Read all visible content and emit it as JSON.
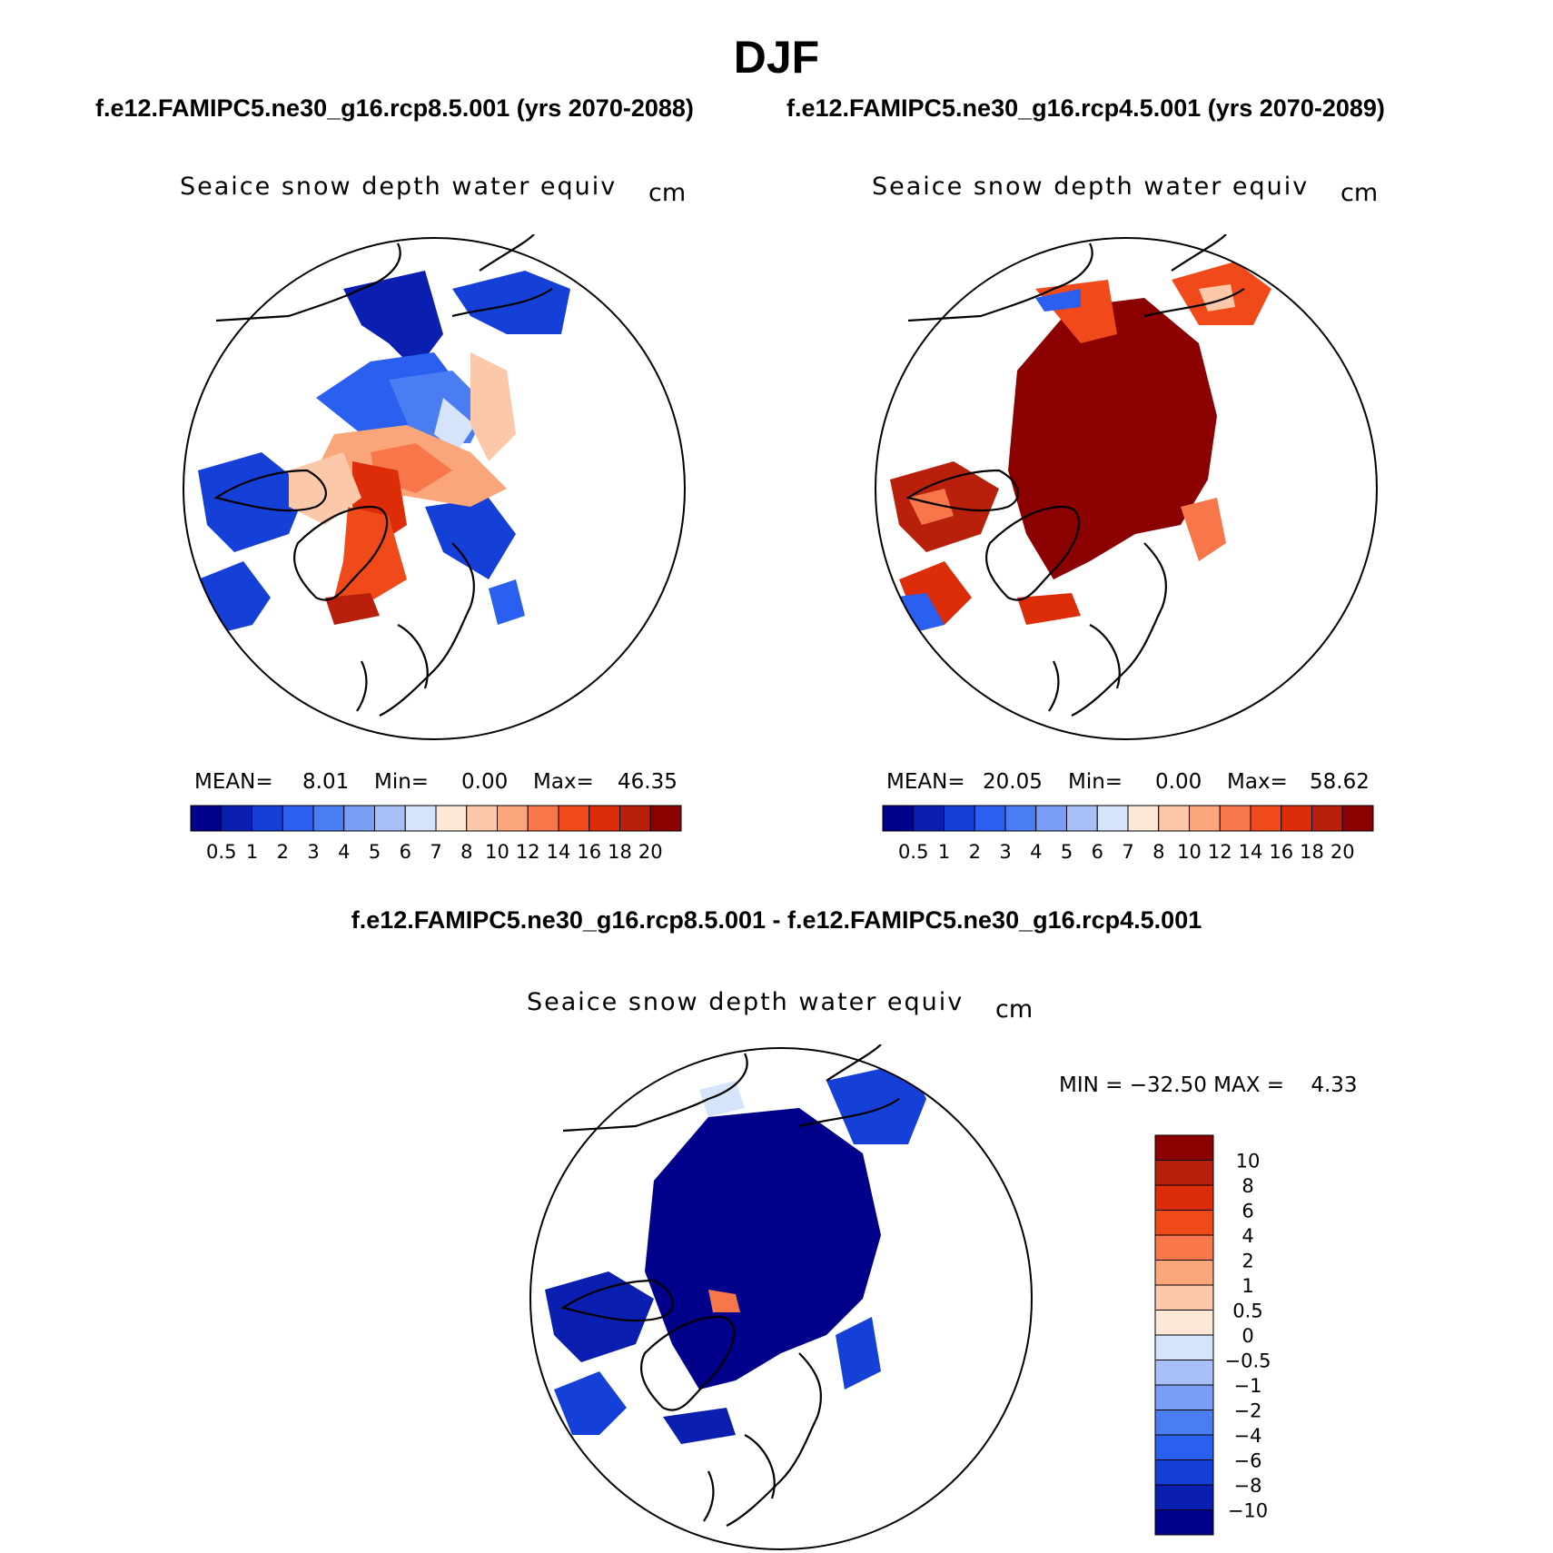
{
  "figure": {
    "title": "DJF",
    "subtitle_left": "f.e12.FAMIPC5.ne30_g16.rcp8.5.001 (yrs 2070-2088)",
    "subtitle_right": "f.e12.FAMIPC5.ne30_g16.rcp4.5.001 (yrs 2070-2089)",
    "diff_title": "f.e12.FAMIPC5.ne30_g16.rcp8.5.001 - f.e12.FAMIPC5.ne30_g16.rcp4.5.001"
  },
  "panels": [
    {
      "variable": "Seaice snow depth water equiv",
      "units": "cm",
      "mean_label": "MEAN=",
      "mean": "8.01",
      "min_label": "Min=",
      "min": "0.00",
      "max_label": "Max=",
      "max": "46.35"
    },
    {
      "variable": "Seaice snow depth water equiv",
      "units": "cm",
      "mean_label": "MEAN=",
      "mean": "20.05",
      "min_label": "Min=",
      "min": "0.00",
      "max_label": "Max=",
      "max": "58.62"
    },
    {
      "variable": "Seaice snow depth water equiv",
      "units": "cm",
      "minmax": "MIN = −32.50 MAX =    4.33"
    }
  ],
  "colorbar_abs": {
    "labels": [
      "0.5",
      "1",
      "2",
      "3",
      "4",
      "5",
      "6",
      "7",
      "8",
      "10",
      "12",
      "14",
      "16",
      "18",
      "20"
    ],
    "colors": [
      "#00008b",
      "#0a1fb0",
      "#1540d8",
      "#2a5ff0",
      "#4a7cf2",
      "#7a9ef5",
      "#a8c0f7",
      "#d5e4fa",
      "#fde8d8",
      "#fcc8aa",
      "#fba57a",
      "#f8774a",
      "#f04a1a",
      "#dc2c08",
      "#b8200c",
      "#8b0000"
    ]
  },
  "colorbar_diff": {
    "labels": [
      "10",
      "8",
      "6",
      "4",
      "2",
      "1",
      "0.5",
      "0",
      "−0.5",
      "−1",
      "−2",
      "−4",
      "−6",
      "−8",
      "−10"
    ],
    "colors": [
      "#8b0000",
      "#b8200c",
      "#dc2c08",
      "#f04a1a",
      "#f8774a",
      "#fba57a",
      "#fcc8aa",
      "#fde8d8",
      "#d5e4fa",
      "#a8c0f7",
      "#7a9ef5",
      "#4a7cf2",
      "#2a5ff0",
      "#1540d8",
      "#0a1fb0",
      "#00008b"
    ]
  }
}
